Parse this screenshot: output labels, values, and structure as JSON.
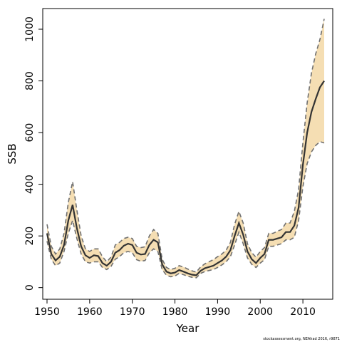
{
  "chart_data": {
    "type": "line",
    "title": "",
    "xlabel": "Year",
    "ylabel": "SSB",
    "xlim": [
      1949,
      2017
    ],
    "ylim": [
      -45,
      1080
    ],
    "xticks": [
      1950,
      1960,
      1970,
      1980,
      1990,
      2000,
      2010
    ],
    "yticks": [
      0,
      200,
      400,
      600,
      800,
      1000
    ],
    "grid": false,
    "legend": "none",
    "colors": {
      "band_fill": "#F5DEB3",
      "band_edge": "#707070",
      "line": "#333333",
      "axis": "#000000"
    },
    "series": [
      {
        "x": [
          1950,
          1951,
          1952,
          1953,
          1954,
          1955,
          1956,
          1957,
          1958,
          1959,
          1960,
          1961,
          1962,
          1963,
          1964,
          1965,
          1966,
          1967,
          1968,
          1969,
          1970,
          1971,
          1972,
          1973,
          1974,
          1975,
          1976,
          1977,
          1978,
          1979,
          1980,
          1981,
          1982,
          1983,
          1984,
          1985,
          1986,
          1987,
          1988,
          1989,
          1990,
          1991,
          1992,
          1993,
          1994,
          1995,
          1996,
          1997,
          1998,
          1999,
          2000,
          2001,
          2002,
          2003,
          2004,
          2005,
          2006,
          2007,
          2008,
          2009,
          2010,
          2011,
          2012,
          2013,
          2014,
          2015
        ],
        "values": [
          210,
          130,
          105,
          120,
          165,
          260,
          320,
          230,
          160,
          125,
          115,
          125,
          122,
          95,
          85,
          100,
          135,
          145,
          162,
          170,
          165,
          135,
          128,
          130,
          165,
          185,
          175,
          90,
          62,
          55,
          58,
          68,
          62,
          55,
          50,
          48,
          65,
          75,
          80,
          85,
          95,
          105,
          120,
          145,
          200,
          250,
          205,
          140,
          110,
          95,
          115,
          130,
          185,
          185,
          190,
          195,
          215,
          215,
          240,
          310,
          475,
          600,
          680,
          730,
          775,
          800
        ],
        "lower": [
          180,
          110,
          85,
          95,
          140,
          210,
          260,
          190,
          130,
          100,
          95,
          100,
          100,
          78,
          70,
          82,
          110,
          120,
          135,
          140,
          135,
          108,
          102,
          105,
          135,
          150,
          140,
          70,
          48,
          42,
          45,
          55,
          50,
          44,
          40,
          38,
          55,
          62,
          66,
          70,
          78,
          88,
          100,
          120,
          165,
          215,
          170,
          115,
          90,
          78,
          95,
          108,
          160,
          160,
          165,
          170,
          185,
          185,
          195,
          260,
          390,
          480,
          525,
          550,
          565,
          560
        ],
        "upper": [
          245,
          160,
          130,
          150,
          210,
          330,
          410,
          300,
          200,
          150,
          140,
          150,
          150,
          120,
          100,
          118,
          165,
          175,
          190,
          195,
          190,
          160,
          155,
          158,
          200,
          225,
          210,
          110,
          78,
          70,
          75,
          85,
          80,
          72,
          65,
          60,
          80,
          92,
          100,
          108,
          120,
          130,
          145,
          175,
          245,
          295,
          250,
          170,
          135,
          118,
          140,
          155,
          210,
          210,
          218,
          225,
          250,
          250,
          295,
          380,
          560,
          715,
          830,
          905,
          960,
          1040
        ]
      }
    ]
  },
  "footnote": "stockassessment.org,  NEAhad  2016,  r9871"
}
